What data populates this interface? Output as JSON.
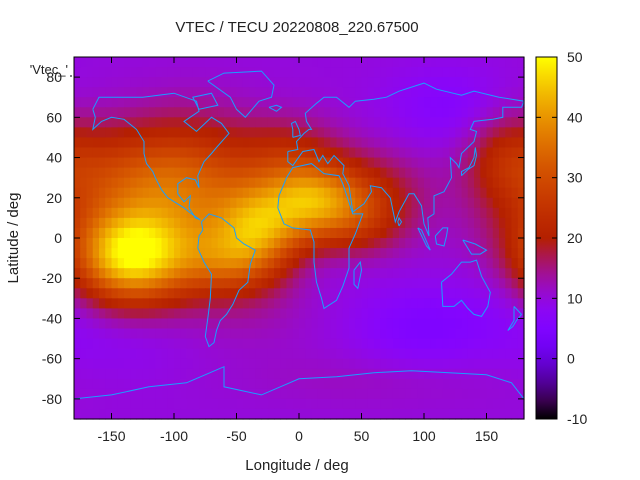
{
  "chart_data": {
    "type": "heatmap",
    "title": "VTEC / TECU 20220808_220.67500",
    "xlabel": "Longitude / deg",
    "ylabel": "Latitude / deg",
    "xlim": [
      -180,
      180
    ],
    "ylim": [
      -90,
      90
    ],
    "x_ticks": [
      -150,
      -100,
      -50,
      0,
      50,
      100,
      150
    ],
    "y_ticks": [
      -80,
      -60,
      -40,
      -20,
      0,
      20,
      40,
      60,
      80
    ],
    "x_tick_labels": [
      "-150",
      "-100",
      "-50",
      "0",
      "50",
      "100",
      "150"
    ],
    "y_tick_labels": [
      "-80",
      "-60",
      "-40",
      "-20",
      "0",
      "20",
      "40",
      "60",
      "80"
    ],
    "series_label": "'Vtec_'",
    "colorbar": {
      "min": -10,
      "max": 50,
      "ticks": [
        "-10",
        "0",
        "10",
        "20",
        "30",
        "40",
        "50"
      ],
      "tick_values": [
        -10,
        0,
        10,
        20,
        30,
        40,
        50
      ],
      "colormap": "gnuplot-pm3d"
    },
    "base_value": 10,
    "blobs": [
      {
        "lon": -135,
        "lat": -10,
        "slon": 32,
        "slat": 16,
        "v": 32
      },
      {
        "lon": -120,
        "lat": 12,
        "slon": 55,
        "slat": 24,
        "v": 14
      },
      {
        "lon": -150,
        "lat": 35,
        "slon": 40,
        "slat": 16,
        "v": 8
      },
      {
        "lon": -85,
        "lat": 30,
        "slon": 35,
        "slat": 22,
        "v": 12
      },
      {
        "lon": -30,
        "lat": 7,
        "slon": 26,
        "slat": 15,
        "v": 24
      },
      {
        "lon": -55,
        "lat": -12,
        "slon": 30,
        "slat": 12,
        "v": 16
      },
      {
        "lon": -10,
        "lat": 40,
        "slon": 30,
        "slat": 14,
        "v": 10
      },
      {
        "lon": 10,
        "lat": 20,
        "slon": 24,
        "slat": 12,
        "v": 16
      },
      {
        "lon": 40,
        "lat": 10,
        "slon": 30,
        "slat": 13,
        "v": 14
      },
      {
        "lon": 50,
        "lat": 25,
        "slon": 35,
        "slat": 14,
        "v": 8
      },
      {
        "lon": 165,
        "lat": 40,
        "slon": 22,
        "slat": 16,
        "v": 8
      },
      {
        "lon": 0,
        "lat": -12,
        "slon": 35,
        "slat": 9,
        "v": -2
      },
      {
        "lon": 100,
        "lat": -45,
        "slon": 40,
        "slat": 15,
        "v": -5
      },
      {
        "lon": 120,
        "lat": 65,
        "slon": 35,
        "slat": 14,
        "v": -4
      },
      {
        "lon": 170,
        "lat": -30,
        "slon": 30,
        "slat": 18,
        "v": -2
      },
      {
        "lon": -140,
        "lat": -50,
        "slon": 40,
        "slat": 14,
        "v": -2
      },
      {
        "lon": -40,
        "lat": -40,
        "slon": 40,
        "slat": 12,
        "v": 2
      },
      {
        "lon": 60,
        "lat": -70,
        "slon": 80,
        "slat": 10,
        "v": 2
      }
    ],
    "coastlines": [
      {
        "name": "north-america",
        "points": [
          [
            -165,
            64
          ],
          [
            -160,
            70
          ],
          [
            -140,
            70
          ],
          [
            -125,
            70
          ],
          [
            -100,
            72
          ],
          [
            -82,
            68
          ],
          [
            -80,
            63
          ],
          [
            -92,
            58
          ],
          [
            -82,
            53
          ],
          [
            -70,
            60
          ],
          [
            -62,
            57
          ],
          [
            -56,
            52
          ],
          [
            -66,
            45
          ],
          [
            -70,
            42
          ],
          [
            -76,
            38
          ],
          [
            -81,
            31
          ],
          [
            -80,
            25
          ],
          [
            -83,
            29
          ],
          [
            -90,
            30
          ],
          [
            -97,
            27
          ],
          [
            -97,
            22
          ],
          [
            -92,
            18
          ],
          [
            -87,
            21
          ],
          [
            -88,
            15
          ],
          [
            -83,
            10
          ],
          [
            -79,
            9
          ],
          [
            -86,
            12
          ],
          [
            -92,
            15
          ],
          [
            -105,
            20
          ],
          [
            -110,
            24
          ],
          [
            -115,
            30
          ],
          [
            -117,
            33
          ],
          [
            -122,
            37
          ],
          [
            -124,
            42
          ],
          [
            -124,
            48
          ],
          [
            -130,
            54
          ],
          [
            -140,
            59
          ],
          [
            -150,
            60
          ],
          [
            -158,
            58
          ],
          [
            -165,
            54
          ],
          [
            -163,
            60
          ],
          [
            -165,
            64
          ]
        ]
      },
      {
        "name": "south-america",
        "points": [
          [
            -78,
            8
          ],
          [
            -72,
            12
          ],
          [
            -62,
            10
          ],
          [
            -52,
            5
          ],
          [
            -50,
            0
          ],
          [
            -44,
            -3
          ],
          [
            -35,
            -6
          ],
          [
            -39,
            -13
          ],
          [
            -41,
            -22
          ],
          [
            -48,
            -26
          ],
          [
            -53,
            -33
          ],
          [
            -58,
            -38
          ],
          [
            -63,
            -41
          ],
          [
            -66,
            -46
          ],
          [
            -68,
            -52
          ],
          [
            -72,
            -54
          ],
          [
            -75,
            -49
          ],
          [
            -73,
            -40
          ],
          [
            -71,
            -30
          ],
          [
            -70,
            -18
          ],
          [
            -76,
            -12
          ],
          [
            -81,
            -5
          ],
          [
            -80,
            1
          ],
          [
            -77,
            4
          ],
          [
            -78,
            8
          ]
        ]
      },
      {
        "name": "africa",
        "points": [
          [
            -17,
            15
          ],
          [
            -16,
            21
          ],
          [
            -10,
            30
          ],
          [
            -5,
            35
          ],
          [
            10,
            37
          ],
          [
            20,
            32
          ],
          [
            32,
            31
          ],
          [
            35,
            27
          ],
          [
            43,
            12
          ],
          [
            51,
            12
          ],
          [
            45,
            2
          ],
          [
            40,
            -5
          ],
          [
            40,
            -15
          ],
          [
            35,
            -24
          ],
          [
            30,
            -31
          ],
          [
            20,
            -35
          ],
          [
            18,
            -30
          ],
          [
            14,
            -22
          ],
          [
            12,
            -12
          ],
          [
            12,
            -2
          ],
          [
            9,
            4
          ],
          [
            -5,
            5
          ],
          [
            -12,
            7
          ],
          [
            -17,
            15
          ]
        ]
      },
      {
        "name": "eurasia",
        "points": [
          [
            -9,
            43
          ],
          [
            -9,
            38
          ],
          [
            -5,
            36
          ],
          [
            3,
            43
          ],
          [
            12,
            44
          ],
          [
            16,
            38
          ],
          [
            19,
            41
          ],
          [
            23,
            37
          ],
          [
            28,
            41
          ],
          [
            36,
            36
          ],
          [
            35,
            32
          ],
          [
            40,
            26
          ],
          [
            43,
            13
          ],
          [
            52,
            17
          ],
          [
            58,
            23
          ],
          [
            57,
            26
          ],
          [
            66,
            25
          ],
          [
            73,
            20
          ],
          [
            77,
            8
          ],
          [
            80,
            13
          ],
          [
            88,
            22
          ],
          [
            92,
            22
          ],
          [
            98,
            16
          ],
          [
            100,
            7
          ],
          [
            104,
            1
          ],
          [
            103,
            10
          ],
          [
            108,
            12
          ],
          [
            108,
            21
          ],
          [
            116,
            23
          ],
          [
            122,
            30
          ],
          [
            121,
            40
          ],
          [
            126,
            37
          ],
          [
            128,
            35
          ],
          [
            130,
            42
          ],
          [
            140,
            48
          ],
          [
            142,
            53
          ],
          [
            137,
            54
          ],
          [
            140,
            58
          ],
          [
            155,
            59
          ],
          [
            163,
            60
          ],
          [
            163,
            65
          ],
          [
            178,
            65
          ],
          [
            180,
            68
          ],
          [
            160,
            70
          ],
          [
            140,
            73
          ],
          [
            130,
            71
          ],
          [
            110,
            74
          ],
          [
            100,
            77
          ],
          [
            80,
            73
          ],
          [
            70,
            70
          ],
          [
            60,
            69
          ],
          [
            45,
            68
          ],
          [
            40,
            65
          ],
          [
            30,
            70
          ],
          [
            20,
            70
          ],
          [
            14,
            67
          ],
          [
            5,
            62
          ],
          [
            6,
            58
          ],
          [
            10,
            54
          ],
          [
            8,
            54
          ],
          [
            4,
            52
          ],
          [
            -2,
            48
          ],
          [
            -1,
            44
          ],
          [
            -9,
            43
          ]
        ]
      },
      {
        "name": "greenland",
        "points": [
          [
            -73,
            78
          ],
          [
            -60,
            82
          ],
          [
            -30,
            83
          ],
          [
            -20,
            76
          ],
          [
            -22,
            70
          ],
          [
            -32,
            68
          ],
          [
            -43,
            60
          ],
          [
            -50,
            64
          ],
          [
            -55,
            70
          ],
          [
            -73,
            78
          ]
        ]
      },
      {
        "name": "australia",
        "points": [
          [
            114,
            -22
          ],
          [
            122,
            -18
          ],
          [
            130,
            -12
          ],
          [
            137,
            -12
          ],
          [
            142,
            -11
          ],
          [
            146,
            -19
          ],
          [
            153,
            -27
          ],
          [
            151,
            -34
          ],
          [
            146,
            -39
          ],
          [
            140,
            -38
          ],
          [
            135,
            -35
          ],
          [
            130,
            -31
          ],
          [
            124,
            -34
          ],
          [
            115,
            -34
          ],
          [
            114,
            -22
          ]
        ]
      },
      {
        "name": "antarctica",
        "points": [
          [
            -180,
            -80
          ],
          [
            -150,
            -78
          ],
          [
            -120,
            -74
          ],
          [
            -90,
            -72
          ],
          [
            -60,
            -64
          ],
          [
            -60,
            -74
          ],
          [
            -30,
            -78
          ],
          [
            0,
            -70
          ],
          [
            30,
            -69
          ],
          [
            60,
            -67
          ],
          [
            90,
            -66
          ],
          [
            120,
            -67
          ],
          [
            150,
            -68
          ],
          [
            170,
            -72
          ],
          [
            180,
            -80
          ]
        ]
      },
      {
        "name": "british-isles",
        "points": [
          [
            -5,
            50
          ],
          [
            1,
            51
          ],
          [
            0,
            54
          ],
          [
            -3,
            58
          ],
          [
            -6,
            57
          ],
          [
            -5,
            54
          ],
          [
            -5,
            50
          ]
        ]
      },
      {
        "name": "japan",
        "points": [
          [
            130,
            31
          ],
          [
            135,
            34
          ],
          [
            140,
            36
          ],
          [
            142,
            41
          ],
          [
            141,
            45
          ],
          [
            140,
            40
          ],
          [
            136,
            35
          ],
          [
            130,
            33
          ],
          [
            130,
            31
          ]
        ]
      },
      {
        "name": "madagascar",
        "points": [
          [
            44,
            -16
          ],
          [
            49,
            -12
          ],
          [
            50,
            -16
          ],
          [
            47,
            -25
          ],
          [
            44,
            -23
          ],
          [
            44,
            -16
          ]
        ]
      },
      {
        "name": "new-guinea",
        "points": [
          [
            131,
            -1
          ],
          [
            141,
            -3
          ],
          [
            150,
            -6
          ],
          [
            145,
            -8
          ],
          [
            138,
            -8
          ],
          [
            131,
            -1
          ]
        ]
      },
      {
        "name": "borneo",
        "points": [
          [
            109,
            1
          ],
          [
            115,
            5
          ],
          [
            119,
            5
          ],
          [
            118,
            1
          ],
          [
            116,
            -4
          ],
          [
            110,
            -3
          ],
          [
            109,
            1
          ]
        ]
      },
      {
        "name": "sumatra",
        "points": [
          [
            95,
            5
          ],
          [
            98,
            4
          ],
          [
            105,
            -6
          ],
          [
            102,
            -4
          ],
          [
            95,
            5
          ]
        ]
      },
      {
        "name": "new-zealand",
        "points": [
          [
            172,
            -34
          ],
          [
            178,
            -38
          ],
          [
            174,
            -41
          ],
          [
            171,
            -44
          ],
          [
            167,
            -46
          ],
          [
            172,
            -41
          ],
          [
            172,
            -34
          ]
        ]
      },
      {
        "name": "iceland",
        "points": [
          [
            -24,
            65
          ],
          [
            -18,
            66
          ],
          [
            -14,
            65
          ],
          [
            -18,
            63
          ],
          [
            -24,
            65
          ]
        ]
      },
      {
        "name": "sri-lanka",
        "points": [
          [
            80,
            6
          ],
          [
            82,
            8
          ],
          [
            80,
            10
          ],
          [
            79,
            8
          ],
          [
            80,
            6
          ]
        ]
      },
      {
        "name": "baffin-island",
        "points": [
          [
            -80,
            64
          ],
          [
            -65,
            66
          ],
          [
            -70,
            72
          ],
          [
            -85,
            70
          ],
          [
            -80,
            64
          ]
        ]
      }
    ]
  }
}
